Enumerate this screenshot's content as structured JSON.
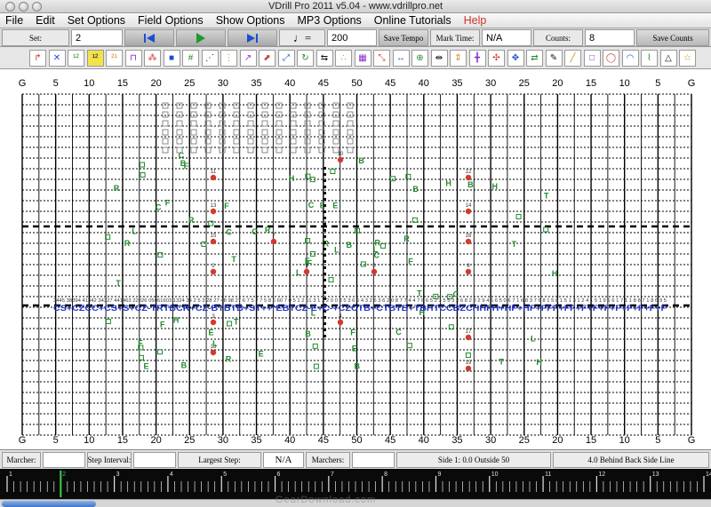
{
  "window": {
    "title": "VDrill Pro 2011 v5.04 - www.vdrillpro.net"
  },
  "menu": [
    "File",
    "Edit",
    "Set Options",
    "Field Options",
    "Show Options",
    "MP3 Options",
    "Online Tutorials",
    "Help"
  ],
  "controls": {
    "set_label": "Set:",
    "set_value": "2",
    "tempo_value": "200",
    "save_tempo": "Save Tempo",
    "mark_time_label": "Mark Time:",
    "mark_time_value": "N/A",
    "counts_label": "Counts:",
    "counts_value": "8",
    "save_counts": "Save Counts"
  },
  "tools": [
    "arrow-select",
    "cross-delete",
    "renumber-up",
    "renumber-highlight",
    "renumber-down",
    "block",
    "scatter",
    "stop-square",
    "label-tool",
    "line-diagonal",
    "dotted-grid",
    "follow-path",
    "move-marker",
    "measure-marker",
    "rotate",
    "swap",
    "distribute",
    "grid-pattern",
    "expand",
    "spread-horizontal",
    "center",
    "align-horizontal",
    "align-vertical",
    "crosshair",
    "scatter-in",
    "scatter-out",
    "flip",
    "pencil",
    "line",
    "rectangle",
    "circle",
    "arc",
    "freeform",
    "triangle",
    "star"
  ],
  "field": {
    "yard_labels": [
      "G",
      "5",
      "10",
      "15",
      "20",
      "25",
      "30",
      "35",
      "40",
      "45",
      "50",
      "45",
      "40",
      "35",
      "30",
      "25",
      "20",
      "15",
      "10",
      "5",
      "G"
    ],
    "colors": {
      "grid": "#000000",
      "marcher_red": "#d23a2b",
      "marcher_green": "#1f8a2a",
      "line_blue": "#1f35c8",
      "label_black": "#111111"
    },
    "red_markers": [
      "11",
      "10",
      "12",
      "13",
      "14",
      "15",
      "7",
      "16",
      "2",
      "9",
      "6",
      "8",
      "3",
      "4",
      "17",
      "18",
      "19"
    ],
    "blue_line_text": "CS+CZCC+CS+S+CZ-TRTBCR+CZ-BTBTB+ST++*EBTCZ-E+C-+CZCTB+CTBTB+TBHTCCBZCHHFH+HF+HF+FFF+FF+F+F+F+F+F+F+F+F",
    "number_line_text": "3445 38394 41342 34327 441463 22026 05061603 1324 34 2 5 3 28 27 48 98 27 6 7 5 2 7 5 8 6 60 7 0 5 1 2 61 3 1 2 2 0 0 3 5 3 6 5 4 3 2 6 3 6 2 0 8 7 7 4 4 7 6 6 5 2 3 5 5 3 2 6 8 2 8 2 9 4 5 6 5 0 6 7 1 6 8 3 7 6 8 1 5 8 1 5 1 3 1 2 4 1 5 1 9 1 6 1 7 1 1 8 8 7 1 8 6 9 5"
  },
  "status": {
    "marcher_label": "Marcher:",
    "marcher_value": "",
    "step_interval_label": "Step Interval:",
    "step_interval_value": "",
    "largest_step_label": "Largest Step:",
    "largest_step_value": "N/A",
    "marchers_label": "Marchers:",
    "marchers_value": "",
    "side_text": "Side 1: 0.0 Outside 50",
    "front_back_text": "4.0 Behind Back Side Line"
  },
  "timeline": {
    "ticks": [
      "1",
      "2",
      "3",
      "4",
      "5",
      "6",
      "7",
      "8",
      "9",
      "10",
      "11",
      "12",
      "13",
      "14"
    ],
    "current": "2"
  },
  "watermark": "GearDownload.com"
}
